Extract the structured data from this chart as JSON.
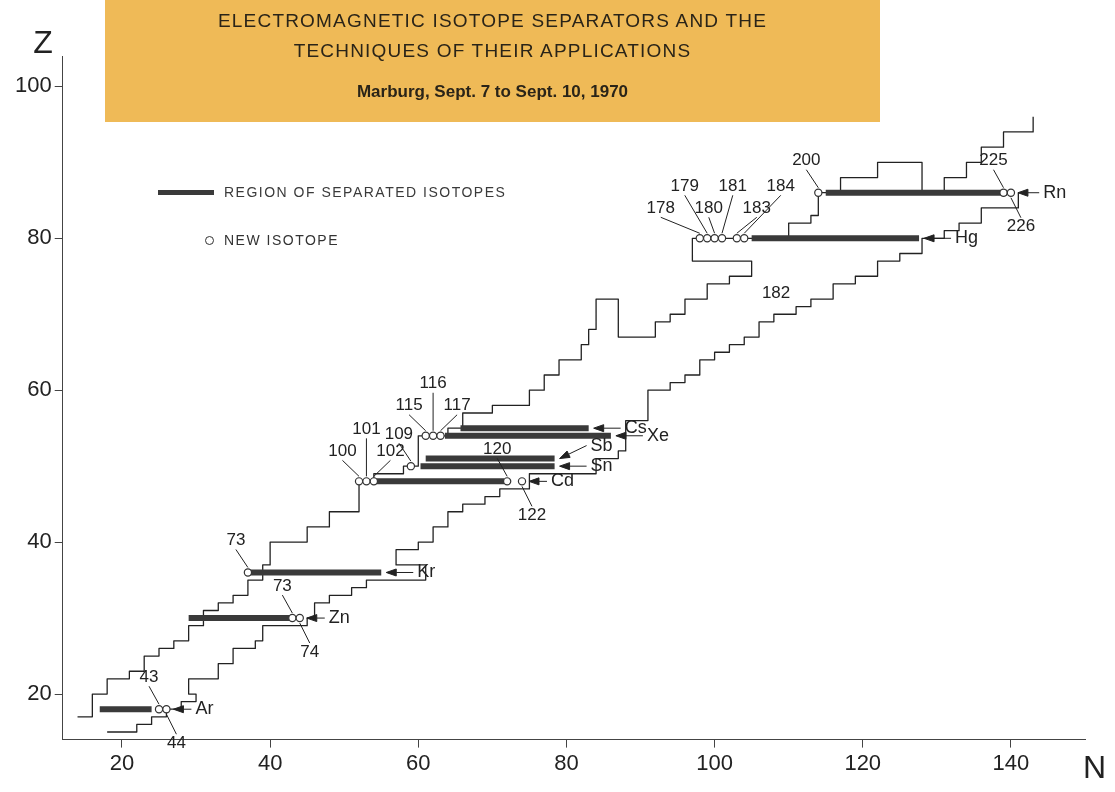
{
  "chart_data": {
    "type": "line",
    "title": "ELECTROMAGNETIC ISOTOPE SEPARATORS AND THE TECHNIQUES OF THEIR APPLICATIONS",
    "subtitle": "Marburg, Sept. 7 to Sept. 10, 1970",
    "xlabel": "N",
    "ylabel": "Z",
    "xlim": [
      12,
      150
    ],
    "ylim": [
      14,
      104
    ],
    "xticks": [
      20,
      40,
      60,
      80,
      100,
      120,
      140
    ],
    "yticks": [
      20,
      40,
      60,
      80,
      100
    ],
    "legend": "top left",
    "series": [
      {
        "type": "line",
        "color": "#222222",
        "marker": "none",
        "x": [
          14,
          16,
          16,
          18,
          18,
          21,
          21,
          23,
          23,
          25,
          25,
          27,
          27,
          29,
          29,
          31,
          31,
          33,
          33,
          35,
          35,
          37,
          37,
          39,
          39,
          40,
          40,
          45,
          45,
          48,
          48,
          52,
          52,
          54,
          54,
          58,
          58,
          60,
          60,
          64,
          64,
          66,
          66,
          70,
          70,
          75,
          75,
          77,
          77,
          79,
          79,
          82,
          82,
          83,
          83,
          84,
          84,
          87,
          87,
          92,
          92,
          94,
          94,
          96,
          96,
          99,
          99,
          102,
          102,
          105,
          105,
          97,
          97,
          110,
          110,
          113,
          113,
          114,
          114,
          117,
          117,
          122,
          122,
          128,
          128,
          131,
          131,
          134,
          134,
          136,
          136,
          139,
          139,
          143,
          143
        ],
        "values": [
          17,
          17,
          20,
          20,
          22,
          22,
          23,
          23,
          25,
          25,
          26,
          26,
          27,
          27,
          29,
          29,
          31,
          31,
          32,
          32,
          33,
          33,
          35,
          35,
          37,
          37,
          40,
          40,
          42,
          42,
          44,
          44,
          48,
          48,
          49,
          49,
          50,
          50,
          54,
          54,
          55,
          55,
          57,
          57,
          58,
          58,
          60,
          60,
          62,
          62,
          64,
          64,
          66,
          66,
          68,
          68,
          72,
          72,
          67,
          67,
          69,
          69,
          70,
          70,
          72,
          72,
          74,
          74,
          75,
          75,
          77,
          77,
          80,
          80,
          82,
          82,
          83,
          83,
          86,
          86,
          88,
          88,
          90,
          90,
          86,
          86,
          88,
          88,
          90,
          90,
          92,
          92,
          94,
          94,
          96
        ]
      },
      {
        "type": "line",
        "color": "#222222",
        "marker": "none",
        "x": [
          18,
          22,
          22,
          24,
          24,
          26,
          26,
          28,
          28,
          30,
          30,
          29,
          29,
          33,
          33,
          35,
          35,
          38,
          38,
          39,
          39,
          45,
          45,
          46,
          46,
          48,
          48,
          51,
          51,
          53,
          53,
          55,
          55,
          61,
          61,
          57,
          57,
          60,
          60,
          62,
          62,
          64,
          64,
          66,
          66,
          69,
          69,
          71,
          71,
          75,
          75,
          84,
          84,
          87,
          87,
          88,
          88,
          91,
          91,
          94,
          94,
          96,
          96,
          98,
          98,
          100,
          100,
          102,
          102,
          104,
          104,
          106,
          106,
          108,
          108,
          111,
          111,
          113,
          113,
          116,
          116,
          119,
          119,
          122,
          122,
          125,
          125,
          128,
          128,
          131,
          131,
          133,
          133,
          136,
          136,
          141,
          141
        ],
        "values": [
          15,
          15,
          16,
          16,
          17,
          17,
          18,
          18,
          19,
          19,
          20,
          20,
          22,
          22,
          24,
          24,
          26,
          26,
          27,
          27,
          29,
          29,
          30,
          30,
          32,
          32,
          33,
          33,
          34,
          34,
          35,
          35,
          35,
          35,
          37,
          37,
          39,
          39,
          40,
          40,
          42,
          42,
          44,
          44,
          45,
          45,
          46,
          46,
          47,
          47,
          49,
          49,
          51,
          51,
          52,
          52,
          56,
          56,
          60,
          60,
          61,
          61,
          62,
          62,
          64,
          64,
          65,
          65,
          66,
          66,
          67,
          67,
          69,
          69,
          70,
          70,
          71,
          71,
          72,
          72,
          74,
          74,
          75,
          75,
          77,
          77,
          78,
          78,
          80,
          80,
          81,
          81,
          82,
          82,
          84,
          84,
          86
        ]
      },
      {
        "type": "line",
        "name": "REGION OF SEPARATED ISOTOPES",
        "color": "#3a3a3a",
        "marker": "none",
        "x": [
          17,
          24,
          null,
          29,
          42.7,
          null,
          36.7,
          55,
          null,
          54.3,
          71.6,
          null,
          60.3,
          78.4,
          null,
          61,
          78.4,
          null,
          63.6,
          86,
          null,
          65.7,
          83,
          null,
          105,
          127.6,
          null,
          115,
          139.5
        ],
        "values": [
          18,
          18,
          null,
          30,
          30,
          null,
          36,
          36,
          null,
          48,
          48,
          null,
          50,
          50,
          null,
          51,
          51,
          null,
          54,
          54,
          null,
          55,
          55,
          null,
          80,
          80,
          null,
          86,
          86
        ]
      },
      {
        "type": "scatter",
        "name": "NEW ISOTOPE",
        "color": "#333333",
        "marker": "circle",
        "x": [
          25,
          26,
          43,
          44,
          37,
          52,
          53,
          54,
          72,
          74,
          59,
          61,
          62,
          63,
          98,
          99,
          100,
          101,
          103,
          104,
          114,
          139,
          140
        ],
        "values": [
          18,
          18,
          30,
          30,
          36,
          48,
          48,
          48,
          48,
          48,
          50,
          54,
          54,
          54,
          80,
          80,
          80,
          80,
          80,
          80,
          86,
          86,
          86
        ]
      }
    ],
    "annotations": [
      {
        "text": "43",
        "x": 25,
        "y": 18
      },
      {
        "text": "44",
        "x": 26,
        "y": 18
      },
      {
        "text": "73",
        "x": 43,
        "y": 30
      },
      {
        "text": "74",
        "x": 44,
        "y": 30
      },
      {
        "text": "73",
        "x": 37,
        "y": 36
      },
      {
        "text": "100",
        "x": 52,
        "y": 48
      },
      {
        "text": "101",
        "x": 53,
        "y": 48
      },
      {
        "text": "102",
        "x": 54,
        "y": 48
      },
      {
        "text": "120",
        "x": 72,
        "y": 48
      },
      {
        "text": "122",
        "x": 74,
        "y": 48
      },
      {
        "text": "109",
        "x": 59,
        "y": 50
      },
      {
        "text": "115",
        "x": 61,
        "y": 54
      },
      {
        "text": "116",
        "x": 62,
        "y": 54
      },
      {
        "text": "117",
        "x": 63,
        "y": 54
      },
      {
        "text": "178",
        "x": 98,
        "y": 80
      },
      {
        "text": "179",
        "x": 99,
        "y": 80
      },
      {
        "text": "180",
        "x": 100,
        "y": 80
      },
      {
        "text": "181",
        "x": 101,
        "y": 80
      },
      {
        "text": "183",
        "x": 103,
        "y": 80
      },
      {
        "text": "184",
        "x": 104,
        "y": 80
      },
      {
        "text": "200",
        "x": 114,
        "y": 86
      },
      {
        "text": "225",
        "x": 139,
        "y": 86
      },
      {
        "text": "226",
        "x": 140,
        "y": 86
      },
      {
        "text": "Ar",
        "x": 24,
        "y": 18
      },
      {
        "text": "Zn",
        "x": 42.7,
        "y": 30
      },
      {
        "text": "Kr",
        "x": 55,
        "y": 36
      },
      {
        "text": "Cd",
        "x": 71.6,
        "y": 48
      },
      {
        "text": "Sn",
        "x": 78.4,
        "y": 50
      },
      {
        "text": "Sb",
        "x": 78.4,
        "y": 51
      },
      {
        "text": "Xe",
        "x": 86,
        "y": 54
      },
      {
        "text": "Cs",
        "x": 83,
        "y": 55
      },
      {
        "text": "Hg",
        "x": 127.6,
        "y": 80
      },
      {
        "text": "Rn",
        "x": 139.5,
        "y": 86
      },
      {
        "text": "182",
        "x": 111,
        "y": 71
      }
    ]
  }
}
